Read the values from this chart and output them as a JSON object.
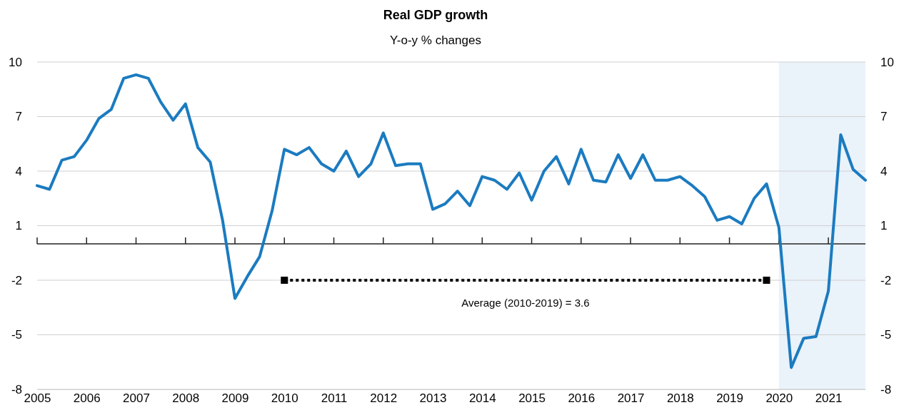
{
  "chart_data": {
    "type": "line",
    "title": "Real GDP growth",
    "subtitle": "Y-o-y % changes",
    "x": [
      2005,
      2005.25,
      2005.5,
      2005.75,
      2006,
      2006.25,
      2006.5,
      2006.75,
      2007,
      2007.25,
      2007.5,
      2007.75,
      2008,
      2008.25,
      2008.5,
      2008.75,
      2009,
      2009.25,
      2009.5,
      2009.75,
      2010,
      2010.25,
      2010.5,
      2010.75,
      2011,
      2011.25,
      2011.5,
      2011.75,
      2012,
      2012.25,
      2012.5,
      2012.75,
      2013,
      2013.25,
      2013.5,
      2013.75,
      2014,
      2014.25,
      2014.5,
      2014.75,
      2015,
      2015.25,
      2015.5,
      2015.75,
      2016,
      2016.25,
      2016.5,
      2016.75,
      2017,
      2017.25,
      2017.5,
      2017.75,
      2018,
      2018.25,
      2018.5,
      2018.75,
      2019,
      2019.25,
      2019.5,
      2019.75,
      2020,
      2020.25,
      2020.5,
      2020.75,
      2021,
      2021.25,
      2021.5,
      2021.75
    ],
    "series": [
      {
        "color": "#1b7bc0",
        "values": [
          3.2,
          3.0,
          4.6,
          4.8,
          5.7,
          6.9,
          7.4,
          9.1,
          9.3,
          9.1,
          7.8,
          6.8,
          7.7,
          5.3,
          4.5,
          1.3,
          -3.0,
          -1.8,
          -0.7,
          1.8,
          5.2,
          4.9,
          5.3,
          4.4,
          4.0,
          5.1,
          3.7,
          4.4,
          6.1,
          4.3,
          4.4,
          4.4,
          1.9,
          2.2,
          2.9,
          2.1,
          3.7,
          3.5,
          3.0,
          3.9,
          2.4,
          4.0,
          4.8,
          3.3,
          5.2,
          3.5,
          3.4,
          4.9,
          3.6,
          4.9,
          3.5,
          3.5,
          3.7,
          3.2,
          2.6,
          1.3,
          1.5,
          1.1,
          2.5,
          3.3,
          0.9,
          -6.8,
          -5.2,
          -5.1,
          -2.6,
          6.0,
          4.1,
          3.5
        ]
      },
      {
        "type": "line",
        "color": "#000000",
        "x": [
          2010,
          2019.75
        ],
        "values": [
          -2,
          -2
        ],
        "line_style": "dotted",
        "marker": "square"
      }
    ],
    "xlim": [
      2005,
      2021.75
    ],
    "xticks": [
      2005,
      2006,
      2007,
      2008,
      2009,
      2010,
      2011,
      2012,
      2013,
      2014,
      2015,
      2016,
      2017,
      2018,
      2019,
      2020,
      2021
    ],
    "ylim": [
      -8,
      10
    ],
    "yticks": [
      -8,
      -5,
      -2,
      1,
      4,
      7,
      10
    ],
    "y2lim": [
      -8,
      10
    ],
    "y2ticks": [
      -8,
      -5,
      -2,
      1,
      4,
      7,
      10
    ],
    "grid": "y",
    "ref_lines": [
      {
        "axis": "y",
        "value": 0,
        "color": "#595959"
      }
    ],
    "bands": [
      {
        "axis": "x",
        "from": 2020,
        "to": 2021.75,
        "color": "#eaf2fa"
      }
    ],
    "annotations": [
      {
        "text": "Average (2010-2019) = 3.6",
        "x": 2014.875,
        "y": -2
      }
    ]
  }
}
